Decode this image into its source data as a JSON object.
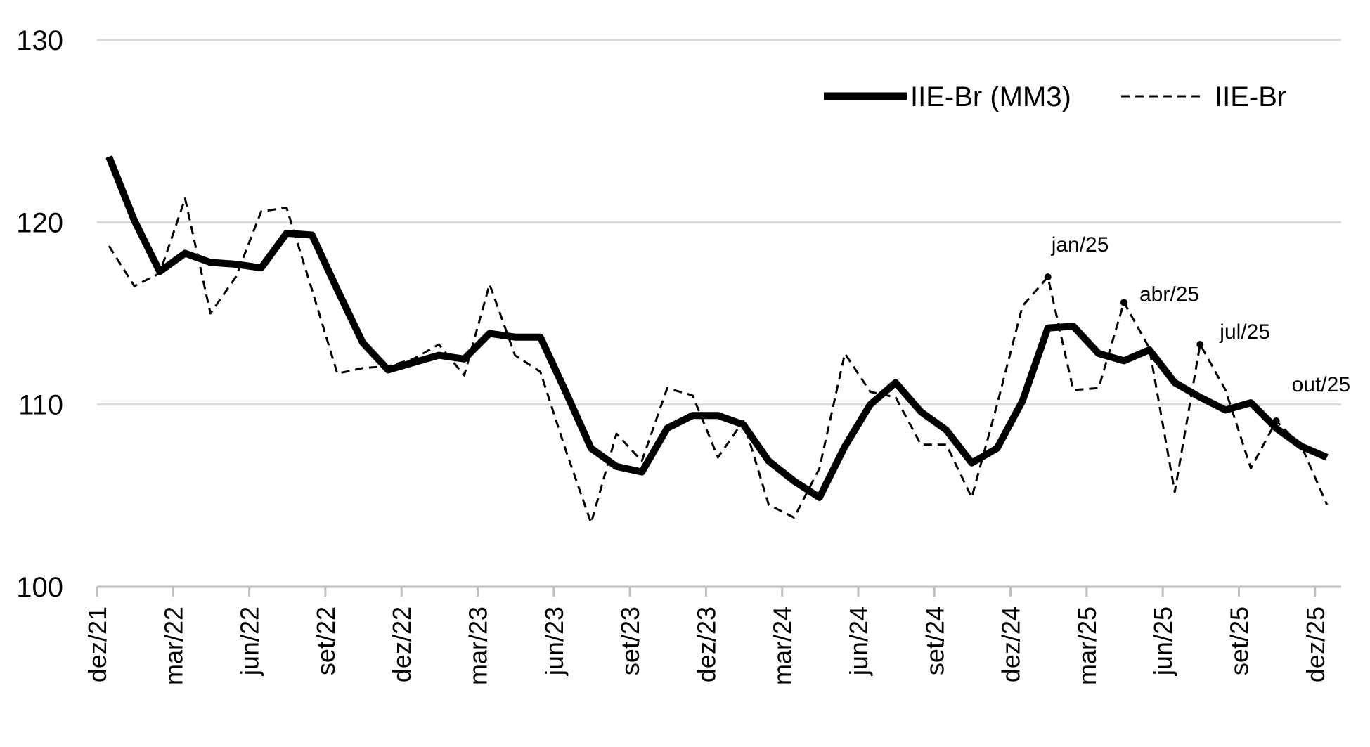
{
  "chart_data": {
    "type": "line",
    "title": "",
    "xlabel": "",
    "ylabel": "",
    "ylim": [
      100,
      130
    ],
    "yticks": [
      100,
      110,
      120,
      130
    ],
    "grid": true,
    "legend_position": "top-right",
    "x": [
      "dez/21",
      "jan/22",
      "fev/22",
      "mar/22",
      "abr/22",
      "mai/22",
      "jun/22",
      "jul/22",
      "ago/22",
      "set/22",
      "out/22",
      "nov/22",
      "dez/22",
      "jan/23",
      "fev/23",
      "mar/23",
      "abr/23",
      "mai/23",
      "jun/23",
      "jul/23",
      "ago/23",
      "set/23",
      "out/23",
      "nov/23",
      "dez/23",
      "jan/24",
      "fev/24",
      "mar/24",
      "abr/24",
      "mai/24",
      "jun/24",
      "jul/24",
      "ago/24",
      "set/24",
      "out/24",
      "nov/24",
      "dez/24",
      "jan/25",
      "fev/25",
      "mar/25",
      "abr/25",
      "mai/25",
      "jun/25",
      "jul/25",
      "ago/25",
      "set/25",
      "out/25",
      "nov/25",
      "dez/25"
    ],
    "xtick_labels": [
      "dez/21",
      "mar/22",
      "jun/22",
      "set/22",
      "dez/22",
      "mar/23",
      "jun/23",
      "set/23",
      "dez/23",
      "mar/24",
      "jun/24",
      "set/24",
      "dez/24",
      "mar/25",
      "jun/25",
      "set/25",
      "dez/25"
    ],
    "series": [
      {
        "name": "IIE-Br (MM3)",
        "style": "solid",
        "color": "#000000",
        "values": [
          123.6,
          120.1,
          117.3,
          118.3,
          117.8,
          117.7,
          117.5,
          119.4,
          119.3,
          116.3,
          113.4,
          111.9,
          112.3,
          112.7,
          112.5,
          113.9,
          113.7,
          113.7,
          110.7,
          107.6,
          106.6,
          106.3,
          108.7,
          109.4,
          109.4,
          108.9,
          106.9,
          105.8,
          104.9,
          107.7,
          110.0,
          111.2,
          109.6,
          108.6,
          106.8,
          107.6,
          110.2,
          114.2,
          114.3,
          112.8,
          112.4,
          113.0,
          111.2,
          110.4,
          109.7,
          110.1,
          108.7,
          107.7,
          107.1
        ]
      },
      {
        "name": "IIE-Br",
        "style": "dashed",
        "color": "#000000",
        "values": [
          118.7,
          116.5,
          117.2,
          121.3,
          115.0,
          117.0,
          120.6,
          120.8,
          116.3,
          111.7,
          112.0,
          112.1,
          112.5,
          113.3,
          111.6,
          116.6,
          112.7,
          111.8,
          107.5,
          103.5,
          108.4,
          106.9,
          110.9,
          110.5,
          107.1,
          109.1,
          104.5,
          103.8,
          106.5,
          112.8,
          110.7,
          110.4,
          107.8,
          107.8,
          104.9,
          110.0,
          115.4,
          117.0,
          110.8,
          110.9,
          115.6,
          113.1,
          105.2,
          113.3,
          110.8,
          106.5,
          109.1,
          107.7,
          104.5
        ]
      }
    ],
    "annotations": [
      {
        "text": "jan/25",
        "x": "jan/25",
        "series": "IIE-Br"
      },
      {
        "text": "abr/25",
        "x": "abr/25",
        "series": "IIE-Br"
      },
      {
        "text": "jul/25",
        "x": "jul/25",
        "series": "IIE-Br"
      },
      {
        "text": "out/25",
        "x": "out/25",
        "series": "IIE-Br"
      }
    ]
  }
}
